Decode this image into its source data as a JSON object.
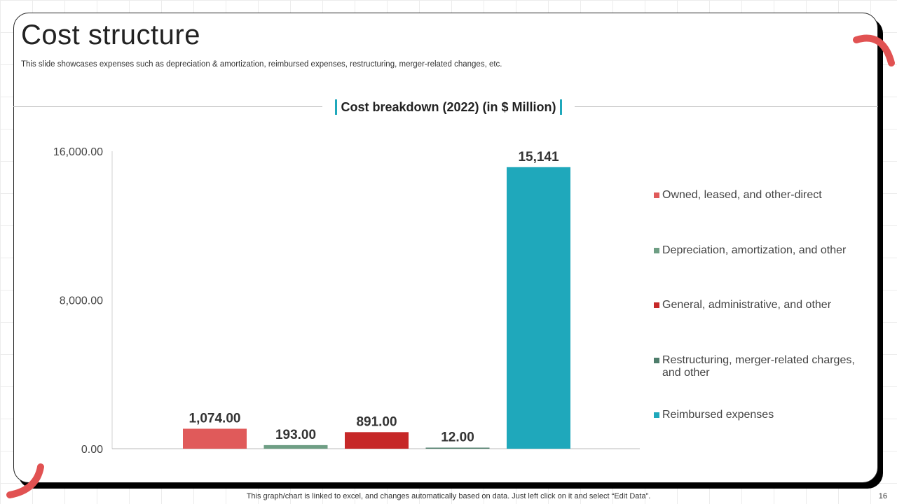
{
  "slide": {
    "title": "Cost structure",
    "subtitle": "This slide showcases expenses such as depreciation & amortization, reimbursed expenses, restructuring, merger-related changes, etc.",
    "footer": "This graph/chart is linked to excel,  and changes automatically based on data. Just left click on it and select “Edit Data”.",
    "page_number": "16"
  },
  "colors": {
    "accent": "#1fa8bb",
    "deco": "#e15252"
  },
  "chart_data": {
    "type": "bar",
    "title": "Cost breakdown (2022) (in $ Million)",
    "categories": [
      "Owned, leased, and other-direct",
      "Depreciation, amortization, and other",
      "General, administrative, and other",
      "Restructuring, merger-related charges, and other",
      "Reimbursed expenses"
    ],
    "values": [
      1074,
      193,
      891,
      12,
      15141
    ],
    "data_labels": [
      "1,074.00",
      "193.00",
      "891.00",
      "12.00",
      "15,141"
    ],
    "colors": [
      "#e05a5a",
      "#6e9e84",
      "#c62828",
      "#4e7d6b",
      "#1fa8bb"
    ],
    "ylim": [
      0,
      16000
    ],
    "yticks": [
      0,
      8000,
      16000
    ],
    "ytick_labels": [
      "0.00",
      "8,000.00",
      "16,000.00"
    ],
    "legend_position": "right",
    "grid": false
  }
}
